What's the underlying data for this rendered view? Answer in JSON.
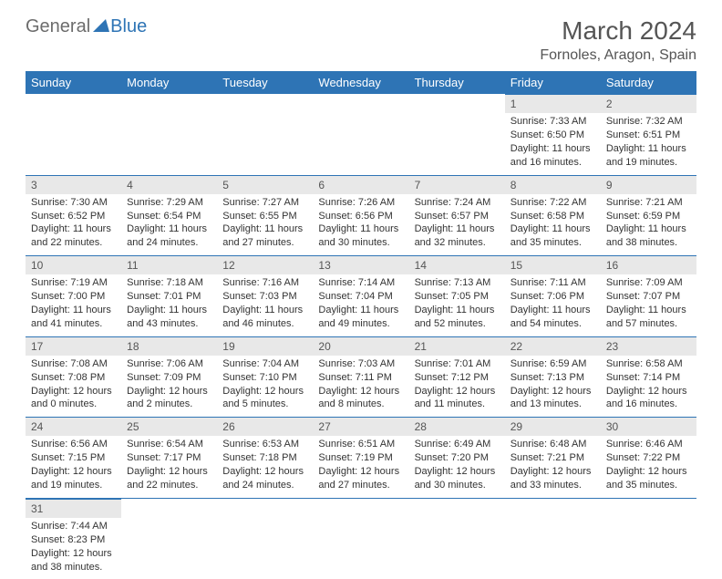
{
  "logo": {
    "general": "General",
    "blue": "Blue"
  },
  "title": "March 2024",
  "location": "Fornoles, Aragon, Spain",
  "colors": {
    "header_bg": "#2e74b5",
    "header_text": "#ffffff",
    "daynum_bg": "#e8e8e8",
    "rule": "#2e74b5",
    "title_color": "#555555",
    "body_text": "#333333"
  },
  "weekdays": [
    "Sunday",
    "Monday",
    "Tuesday",
    "Wednesday",
    "Thursday",
    "Friday",
    "Saturday"
  ],
  "weeks": [
    [
      null,
      null,
      null,
      null,
      null,
      {
        "n": "1",
        "sunrise": "Sunrise: 7:33 AM",
        "sunset": "Sunset: 6:50 PM",
        "daylight": "Daylight: 11 hours and 16 minutes."
      },
      {
        "n": "2",
        "sunrise": "Sunrise: 7:32 AM",
        "sunset": "Sunset: 6:51 PM",
        "daylight": "Daylight: 11 hours and 19 minutes."
      }
    ],
    [
      {
        "n": "3",
        "sunrise": "Sunrise: 7:30 AM",
        "sunset": "Sunset: 6:52 PM",
        "daylight": "Daylight: 11 hours and 22 minutes."
      },
      {
        "n": "4",
        "sunrise": "Sunrise: 7:29 AM",
        "sunset": "Sunset: 6:54 PM",
        "daylight": "Daylight: 11 hours and 24 minutes."
      },
      {
        "n": "5",
        "sunrise": "Sunrise: 7:27 AM",
        "sunset": "Sunset: 6:55 PM",
        "daylight": "Daylight: 11 hours and 27 minutes."
      },
      {
        "n": "6",
        "sunrise": "Sunrise: 7:26 AM",
        "sunset": "Sunset: 6:56 PM",
        "daylight": "Daylight: 11 hours and 30 minutes."
      },
      {
        "n": "7",
        "sunrise": "Sunrise: 7:24 AM",
        "sunset": "Sunset: 6:57 PM",
        "daylight": "Daylight: 11 hours and 32 minutes."
      },
      {
        "n": "8",
        "sunrise": "Sunrise: 7:22 AM",
        "sunset": "Sunset: 6:58 PM",
        "daylight": "Daylight: 11 hours and 35 minutes."
      },
      {
        "n": "9",
        "sunrise": "Sunrise: 7:21 AM",
        "sunset": "Sunset: 6:59 PM",
        "daylight": "Daylight: 11 hours and 38 minutes."
      }
    ],
    [
      {
        "n": "10",
        "sunrise": "Sunrise: 7:19 AM",
        "sunset": "Sunset: 7:00 PM",
        "daylight": "Daylight: 11 hours and 41 minutes."
      },
      {
        "n": "11",
        "sunrise": "Sunrise: 7:18 AM",
        "sunset": "Sunset: 7:01 PM",
        "daylight": "Daylight: 11 hours and 43 minutes."
      },
      {
        "n": "12",
        "sunrise": "Sunrise: 7:16 AM",
        "sunset": "Sunset: 7:03 PM",
        "daylight": "Daylight: 11 hours and 46 minutes."
      },
      {
        "n": "13",
        "sunrise": "Sunrise: 7:14 AM",
        "sunset": "Sunset: 7:04 PM",
        "daylight": "Daylight: 11 hours and 49 minutes."
      },
      {
        "n": "14",
        "sunrise": "Sunrise: 7:13 AM",
        "sunset": "Sunset: 7:05 PM",
        "daylight": "Daylight: 11 hours and 52 minutes."
      },
      {
        "n": "15",
        "sunrise": "Sunrise: 7:11 AM",
        "sunset": "Sunset: 7:06 PM",
        "daylight": "Daylight: 11 hours and 54 minutes."
      },
      {
        "n": "16",
        "sunrise": "Sunrise: 7:09 AM",
        "sunset": "Sunset: 7:07 PM",
        "daylight": "Daylight: 11 hours and 57 minutes."
      }
    ],
    [
      {
        "n": "17",
        "sunrise": "Sunrise: 7:08 AM",
        "sunset": "Sunset: 7:08 PM",
        "daylight": "Daylight: 12 hours and 0 minutes."
      },
      {
        "n": "18",
        "sunrise": "Sunrise: 7:06 AM",
        "sunset": "Sunset: 7:09 PM",
        "daylight": "Daylight: 12 hours and 2 minutes."
      },
      {
        "n": "19",
        "sunrise": "Sunrise: 7:04 AM",
        "sunset": "Sunset: 7:10 PM",
        "daylight": "Daylight: 12 hours and 5 minutes."
      },
      {
        "n": "20",
        "sunrise": "Sunrise: 7:03 AM",
        "sunset": "Sunset: 7:11 PM",
        "daylight": "Daylight: 12 hours and 8 minutes."
      },
      {
        "n": "21",
        "sunrise": "Sunrise: 7:01 AM",
        "sunset": "Sunset: 7:12 PM",
        "daylight": "Daylight: 12 hours and 11 minutes."
      },
      {
        "n": "22",
        "sunrise": "Sunrise: 6:59 AM",
        "sunset": "Sunset: 7:13 PM",
        "daylight": "Daylight: 12 hours and 13 minutes."
      },
      {
        "n": "23",
        "sunrise": "Sunrise: 6:58 AM",
        "sunset": "Sunset: 7:14 PM",
        "daylight": "Daylight: 12 hours and 16 minutes."
      }
    ],
    [
      {
        "n": "24",
        "sunrise": "Sunrise: 6:56 AM",
        "sunset": "Sunset: 7:15 PM",
        "daylight": "Daylight: 12 hours and 19 minutes."
      },
      {
        "n": "25",
        "sunrise": "Sunrise: 6:54 AM",
        "sunset": "Sunset: 7:17 PM",
        "daylight": "Daylight: 12 hours and 22 minutes."
      },
      {
        "n": "26",
        "sunrise": "Sunrise: 6:53 AM",
        "sunset": "Sunset: 7:18 PM",
        "daylight": "Daylight: 12 hours and 24 minutes."
      },
      {
        "n": "27",
        "sunrise": "Sunrise: 6:51 AM",
        "sunset": "Sunset: 7:19 PM",
        "daylight": "Daylight: 12 hours and 27 minutes."
      },
      {
        "n": "28",
        "sunrise": "Sunrise: 6:49 AM",
        "sunset": "Sunset: 7:20 PM",
        "daylight": "Daylight: 12 hours and 30 minutes."
      },
      {
        "n": "29",
        "sunrise": "Sunrise: 6:48 AM",
        "sunset": "Sunset: 7:21 PM",
        "daylight": "Daylight: 12 hours and 33 minutes."
      },
      {
        "n": "30",
        "sunrise": "Sunrise: 6:46 AM",
        "sunset": "Sunset: 7:22 PM",
        "daylight": "Daylight: 12 hours and 35 minutes."
      }
    ],
    [
      {
        "n": "31",
        "sunrise": "Sunrise: 7:44 AM",
        "sunset": "Sunset: 8:23 PM",
        "daylight": "Daylight: 12 hours and 38 minutes."
      },
      null,
      null,
      null,
      null,
      null,
      null
    ]
  ]
}
